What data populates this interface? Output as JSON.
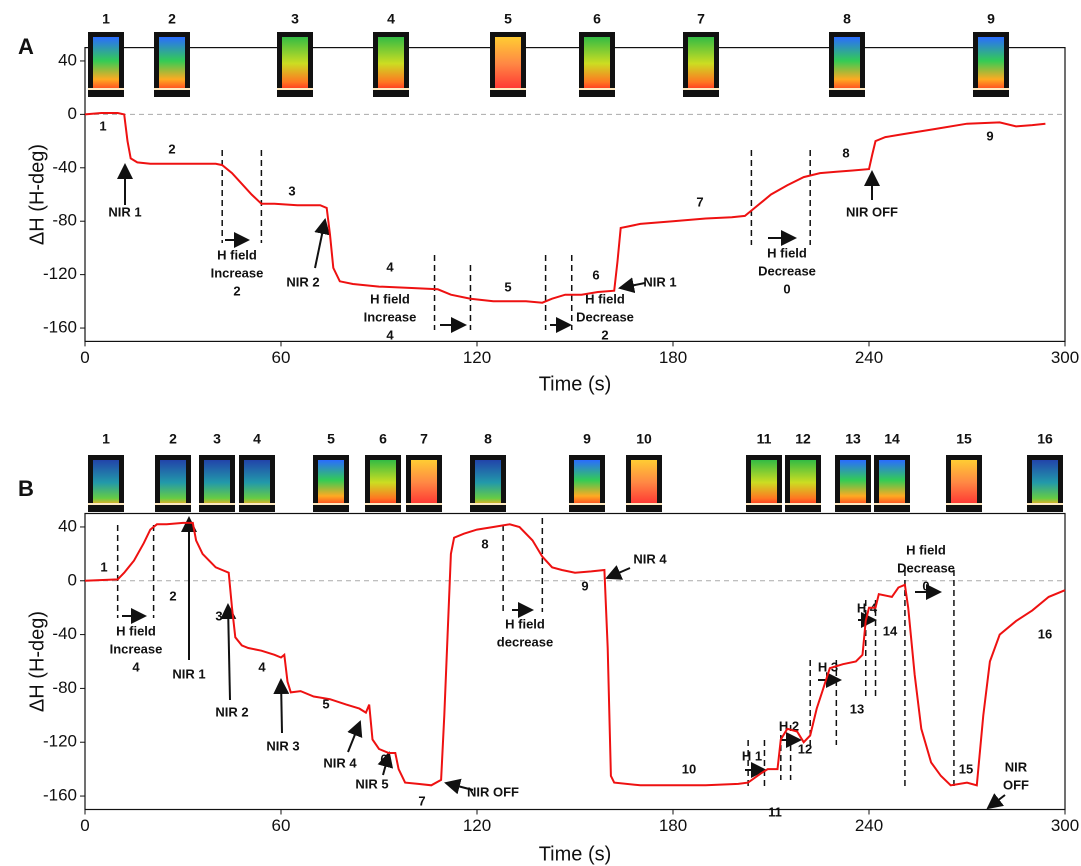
{
  "chart_data": [
    {
      "type": "line",
      "panel": "A",
      "xlabel": "Time (s)",
      "ylabel": "ΔH (H-deg)",
      "xlim": [
        0,
        300
      ],
      "ylim": [
        -170,
        50
      ],
      "xticks": [
        0,
        60,
        120,
        180,
        240,
        300
      ],
      "yticks": [
        40,
        0,
        -40,
        -80,
        -120,
        -160
      ],
      "reference_line": 0,
      "dashed_lines": [
        42,
        54,
        107,
        118,
        141,
        149,
        204,
        222
      ],
      "image_labels": [
        "1",
        "2",
        "3",
        "4",
        "5",
        "6",
        "7",
        "8",
        "9"
      ],
      "x": [
        0,
        5,
        10,
        12,
        13,
        14,
        16,
        20,
        30,
        40,
        42,
        45,
        48,
        51,
        54,
        58,
        65,
        72,
        74,
        75,
        76,
        78,
        82,
        90,
        100,
        108,
        112,
        118,
        125,
        135,
        140,
        143,
        147,
        152,
        157,
        162,
        163,
        164,
        166,
        170,
        180,
        190,
        198,
        202,
        205,
        210,
        215,
        220,
        225,
        230,
        235,
        240,
        241,
        242,
        245,
        250,
        260,
        270,
        280,
        285,
        290,
        294
      ],
      "series": [
        {
          "color": "#ee1111",
          "values": [
            0,
            1,
            1,
            0,
            -20,
            -33,
            -36,
            -37,
            -37,
            -37,
            -38,
            -44,
            -52,
            -60,
            -67,
            -67,
            -68,
            -68,
            -70,
            -90,
            -115,
            -125,
            -127,
            -129,
            -130,
            -131,
            -135,
            -138,
            -140,
            -140,
            -141,
            -138,
            -135,
            -135,
            -133,
            -132,
            -110,
            -85,
            -84,
            -82,
            -80,
            -78,
            -77,
            -76,
            -70,
            -60,
            -53,
            -47,
            -44,
            -43,
            -42,
            -41,
            -30,
            -20,
            -17,
            -15,
            -11,
            -7,
            -6,
            -9,
            -8,
            -7
          ]
        }
      ],
      "annotations": [
        [
          "1"
        ],
        [
          "2"
        ],
        [
          "3"
        ],
        [
          "4"
        ],
        [
          "5"
        ],
        [
          "6"
        ],
        [
          "7"
        ],
        [
          "8"
        ],
        [
          "9"
        ],
        [
          "NIR 1"
        ],
        [
          "H field",
          "Increase",
          "2"
        ],
        [
          "NIR 2"
        ],
        [
          "H field",
          "Increase",
          "4"
        ],
        [
          "H field",
          "Decrease",
          "2"
        ],
        [
          "NIR 1"
        ],
        [
          "H field",
          "Decrease",
          "0"
        ],
        [
          "NIR OFF"
        ]
      ]
    },
    {
      "type": "line",
      "panel": "B",
      "xlabel": "Time (s)",
      "ylabel": "ΔH (H-deg)",
      "xlim": [
        0,
        300
      ],
      "ylim": [
        -170,
        50
      ],
      "xticks": [
        0,
        60,
        120,
        180,
        240,
        300
      ],
      "yticks": [
        40,
        0,
        -40,
        -80,
        -120,
        -160
      ],
      "reference_line": 0,
      "dashed_lines": [
        10,
        21,
        128,
        140,
        203,
        208,
        213,
        216,
        222,
        230,
        239,
        242,
        251,
        266
      ],
      "image_labels": [
        "1",
        "2",
        "3",
        "4",
        "5",
        "6",
        "7",
        "8",
        "9",
        "10",
        "11",
        "12",
        "13",
        "14",
        "15",
        "16"
      ],
      "x": [
        0,
        10,
        12,
        15,
        18,
        20,
        22,
        25,
        30,
        33,
        34,
        36,
        38,
        40,
        42,
        44,
        45,
        46,
        48,
        50,
        54,
        58,
        60,
        61,
        62,
        63,
        66,
        70,
        75,
        80,
        84,
        86,
        87,
        88,
        90,
        93,
        95,
        96,
        98,
        102,
        106,
        109,
        110,
        111,
        112,
        113,
        116,
        120,
        125,
        130,
        133,
        137,
        140,
        143,
        146,
        150,
        155,
        159,
        160,
        161,
        162,
        170,
        180,
        190,
        200,
        203,
        207,
        209,
        212,
        213,
        215,
        218,
        220,
        222,
        224,
        226,
        228,
        232,
        236,
        238,
        239,
        240,
        242,
        243,
        247,
        249,
        251,
        252,
        254,
        256,
        259,
        262,
        265,
        270,
        273,
        275,
        277,
        280,
        285,
        290,
        295,
        300
      ],
      "series": [
        {
          "color": "#ee1111",
          "values": [
            0,
            1,
            6,
            15,
            28,
            38,
            42,
            42,
            43,
            43,
            30,
            20,
            15,
            10,
            8,
            6,
            -20,
            -42,
            -48,
            -50,
            -52,
            -55,
            -57,
            -55,
            -75,
            -83,
            -82,
            -86,
            -88,
            -92,
            -95,
            -98,
            -92,
            -118,
            -125,
            -128,
            -128,
            -140,
            -150,
            -151,
            -152,
            -148,
            -100,
            -40,
            20,
            32,
            35,
            38,
            40,
            42,
            40,
            30,
            18,
            10,
            8,
            6,
            7,
            8,
            -50,
            -145,
            -150,
            -152,
            -152,
            -152,
            -151,
            -150,
            -143,
            -140,
            -140,
            -118,
            -110,
            -112,
            -120,
            -115,
            -95,
            -80,
            -65,
            -62,
            -60,
            -55,
            -30,
            -20,
            -20,
            -10,
            -12,
            -5,
            -3,
            -20,
            -70,
            -110,
            -135,
            -145,
            -152,
            -150,
            -152,
            -100,
            -60,
            -40,
            -30,
            -22,
            -12,
            -7
          ]
        }
      ],
      "annotations": [
        [
          "1"
        ],
        [
          "2"
        ],
        [
          "3"
        ],
        [
          "4"
        ],
        [
          "5"
        ],
        [
          "6"
        ],
        [
          "7"
        ],
        [
          "8"
        ],
        [
          "9"
        ],
        [
          "10"
        ],
        [
          "11"
        ],
        [
          "12"
        ],
        [
          "13"
        ],
        [
          "14"
        ],
        [
          "15"
        ],
        [
          "16"
        ],
        [
          "H field",
          "Increase",
          "4"
        ],
        [
          "NIR 1"
        ],
        [
          "NIR 2"
        ],
        [
          "NIR 3"
        ],
        [
          "NIR 4"
        ],
        [
          "NIR 5"
        ],
        [
          "NIR OFF"
        ],
        [
          "H field",
          "decrease"
        ],
        [
          "NIR 4"
        ],
        [
          "H 1"
        ],
        [
          "H 2"
        ],
        [
          "H 3"
        ],
        [
          "H 4"
        ],
        [
          "H field",
          "Decrease",
          "0"
        ],
        [
          "NIR",
          "OFF"
        ]
      ]
    }
  ]
}
